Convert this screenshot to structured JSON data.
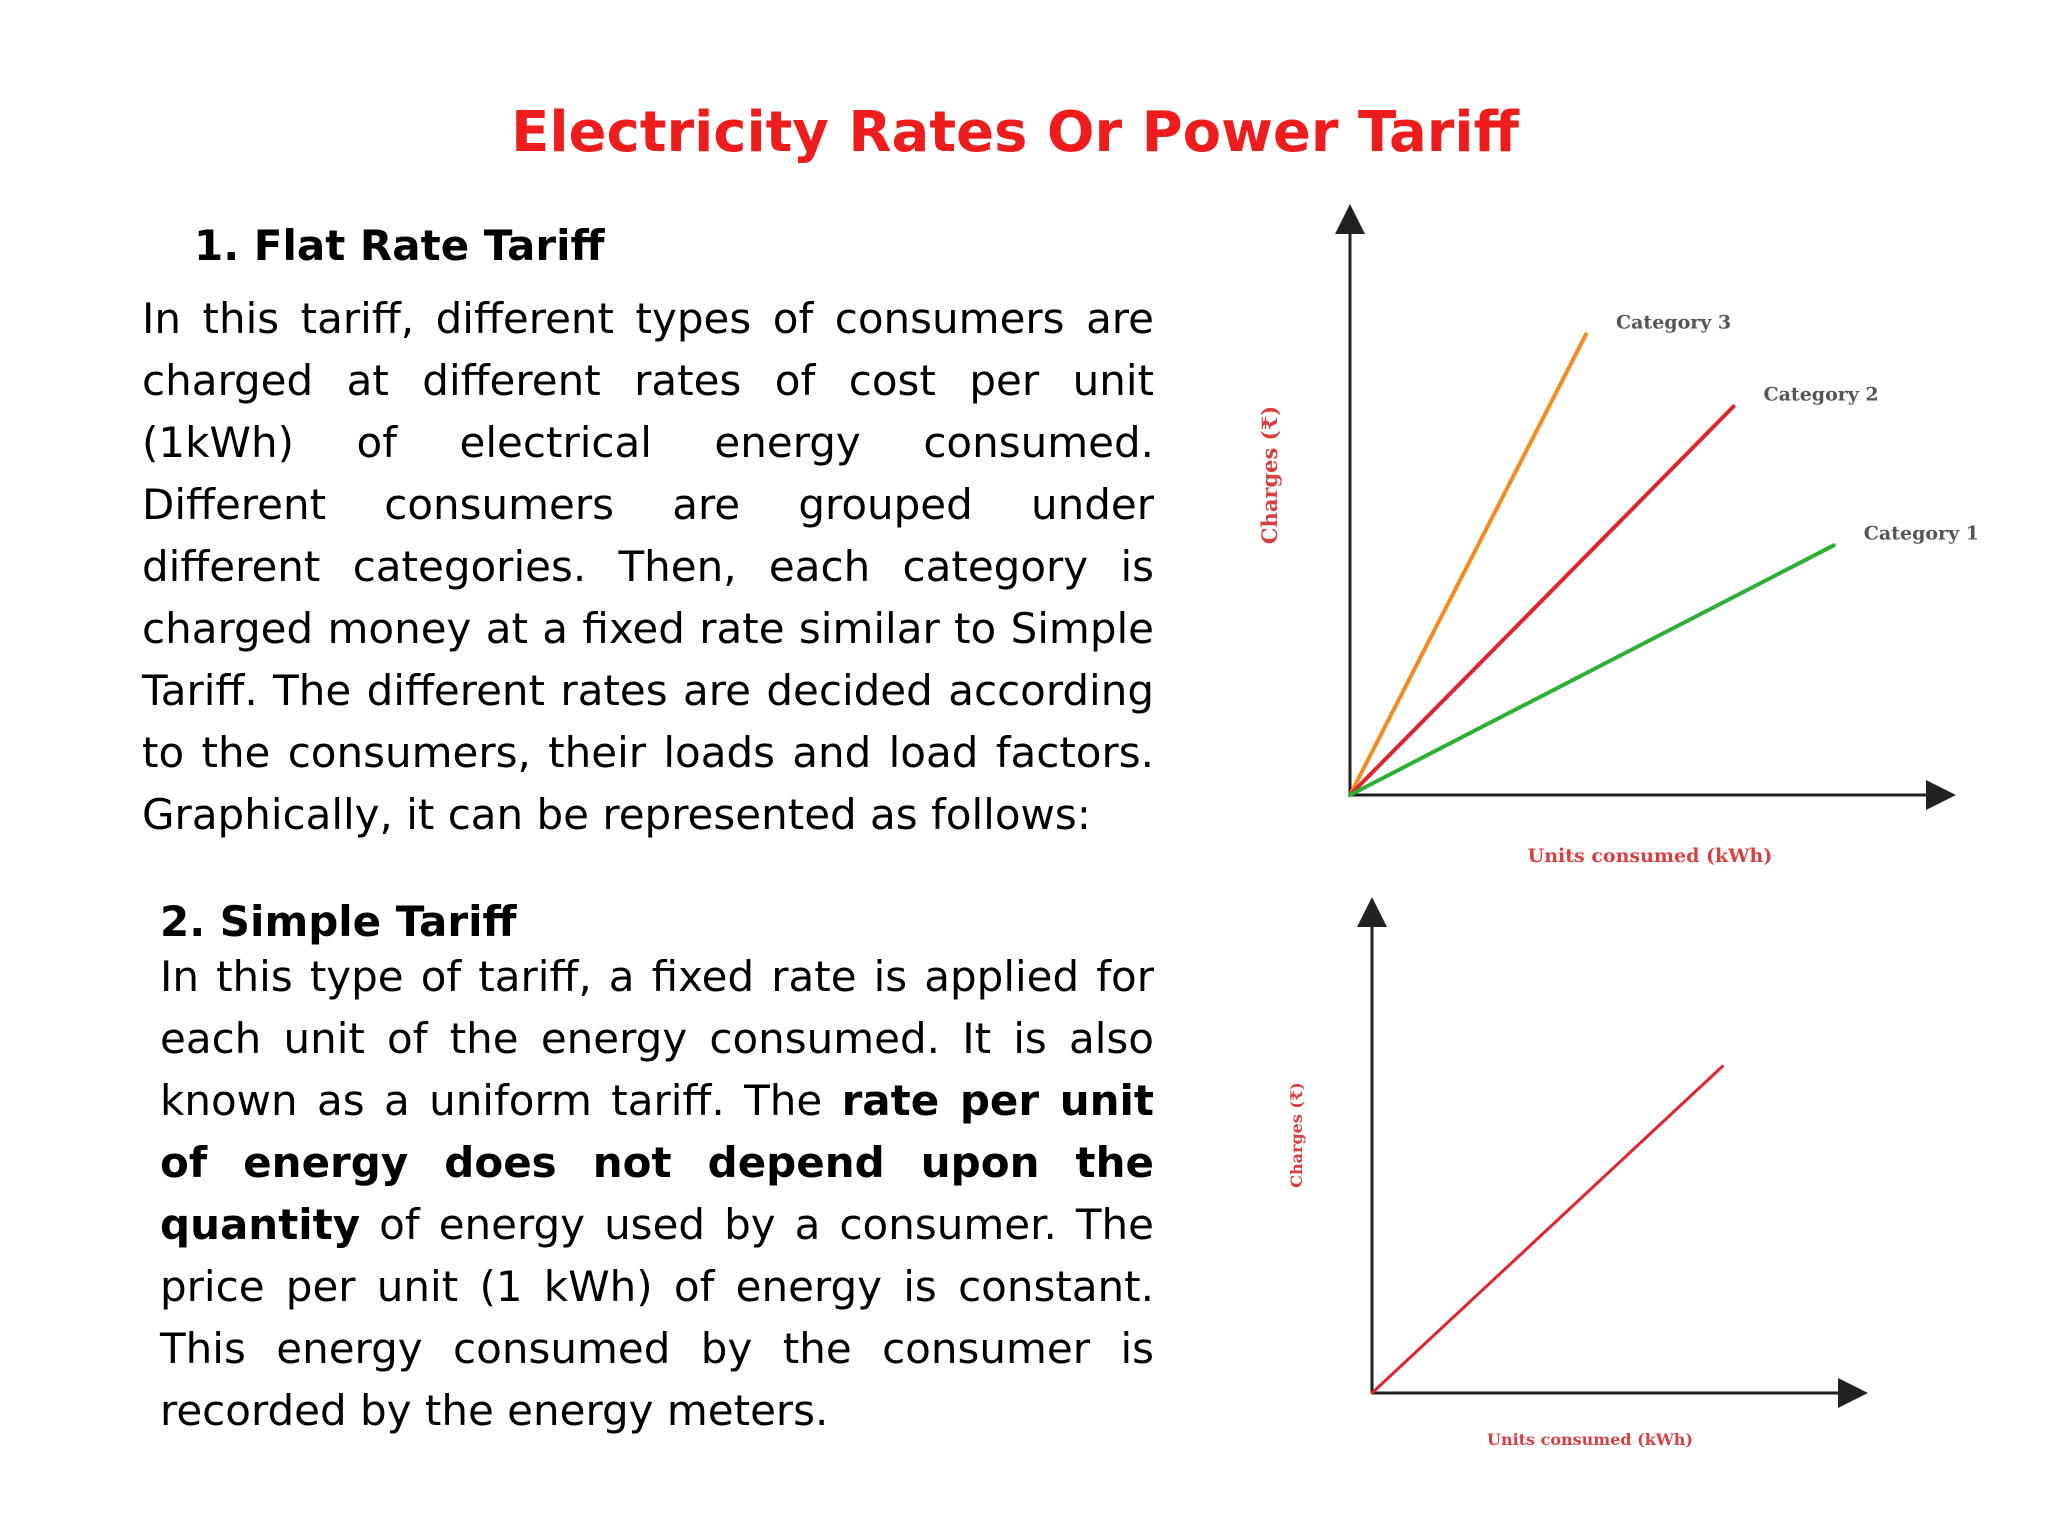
{
  "title": "Electricity Rates Or Power Tariff",
  "section1": {
    "heading": "1. Flat Rate Tariff",
    "text": "In this tariff, different types of consumers are charged at different rates of cost per unit (1kWh) of electrical energy consumed. Different consumers are grouped under different categories. Then, each category is charged money at a fixed rate similar to Simple Tariff. The different rates are decided according to the consumers, their loads and load factors. Graphically, it can be represented as follows:"
  },
  "section2": {
    "heading": "2. Simple Tariff",
    "text_before": "In this type of tariff, a fixed rate is applied for each unit of the energy consumed. It is also known as a uniform tariff. The ",
    "text_bold": "rate per unit of energy does not depend upon the quantity",
    "text_after": " of energy used by a consumer. The price per unit (1 kWh) of energy is constant. This energy consumed by the consumer is recorded by the energy meters."
  },
  "chart_data": [
    {
      "type": "line",
      "xlabel": "Units consumed (kWh)",
      "ylabel": "Charges (₹)",
      "xlim": [
        0,
        10
      ],
      "ylim": [
        0,
        10
      ],
      "series": [
        {
          "name": "Category 3",
          "color": "#f58a1f",
          "x": [
            0,
            4.0
          ],
          "y": [
            0,
            8.3
          ]
        },
        {
          "name": "Category 2",
          "color": "#e0242c",
          "x": [
            0,
            6.5
          ],
          "y": [
            0,
            7.0
          ]
        },
        {
          "name": "Category 1",
          "color": "#2fae3a",
          "x": [
            0,
            8.2
          ],
          "y": [
            0,
            4.5
          ]
        }
      ]
    },
    {
      "type": "line",
      "xlabel": "Units consumed (kWh)",
      "ylabel": "Charges (₹)",
      "xlim": [
        0,
        10
      ],
      "ylim": [
        0,
        10
      ],
      "series": [
        {
          "color": "#e0242c",
          "x": [
            0,
            7.3
          ],
          "y": [
            0,
            7.1
          ]
        }
      ]
    }
  ]
}
